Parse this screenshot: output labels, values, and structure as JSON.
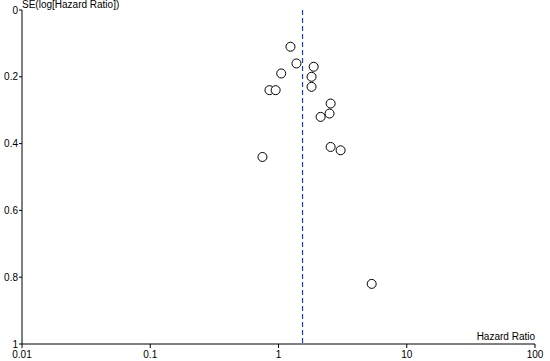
{
  "chart_data": {
    "type": "scatter",
    "x_label": "Hazard Ratio",
    "y_label": "SE(log[Hazard Ratio])",
    "x": [
      1.24,
      1.38,
      1.88,
      1.05,
      1.81,
      1.81,
      0.85,
      0.95,
      2.55,
      2.13,
      2.5,
      2.55,
      3.05,
      0.75,
      5.33
    ],
    "y": [
      0.11,
      0.16,
      0.17,
      0.19,
      0.2,
      0.23,
      0.24,
      0.24,
      0.28,
      0.32,
      0.31,
      0.41,
      0.42,
      0.44,
      0.82
    ],
    "pooled_hr": 1.54,
    "xlim": [
      0.01,
      100
    ],
    "ylim": [
      1,
      0
    ],
    "xticks": [
      0.01,
      0.1,
      1,
      10,
      100
    ],
    "yticks": [
      0,
      0.2,
      0.4,
      0.6,
      0.8,
      1
    ],
    "log": "x",
    "grid": false,
    "marker": "circle",
    "color": "#000000"
  }
}
